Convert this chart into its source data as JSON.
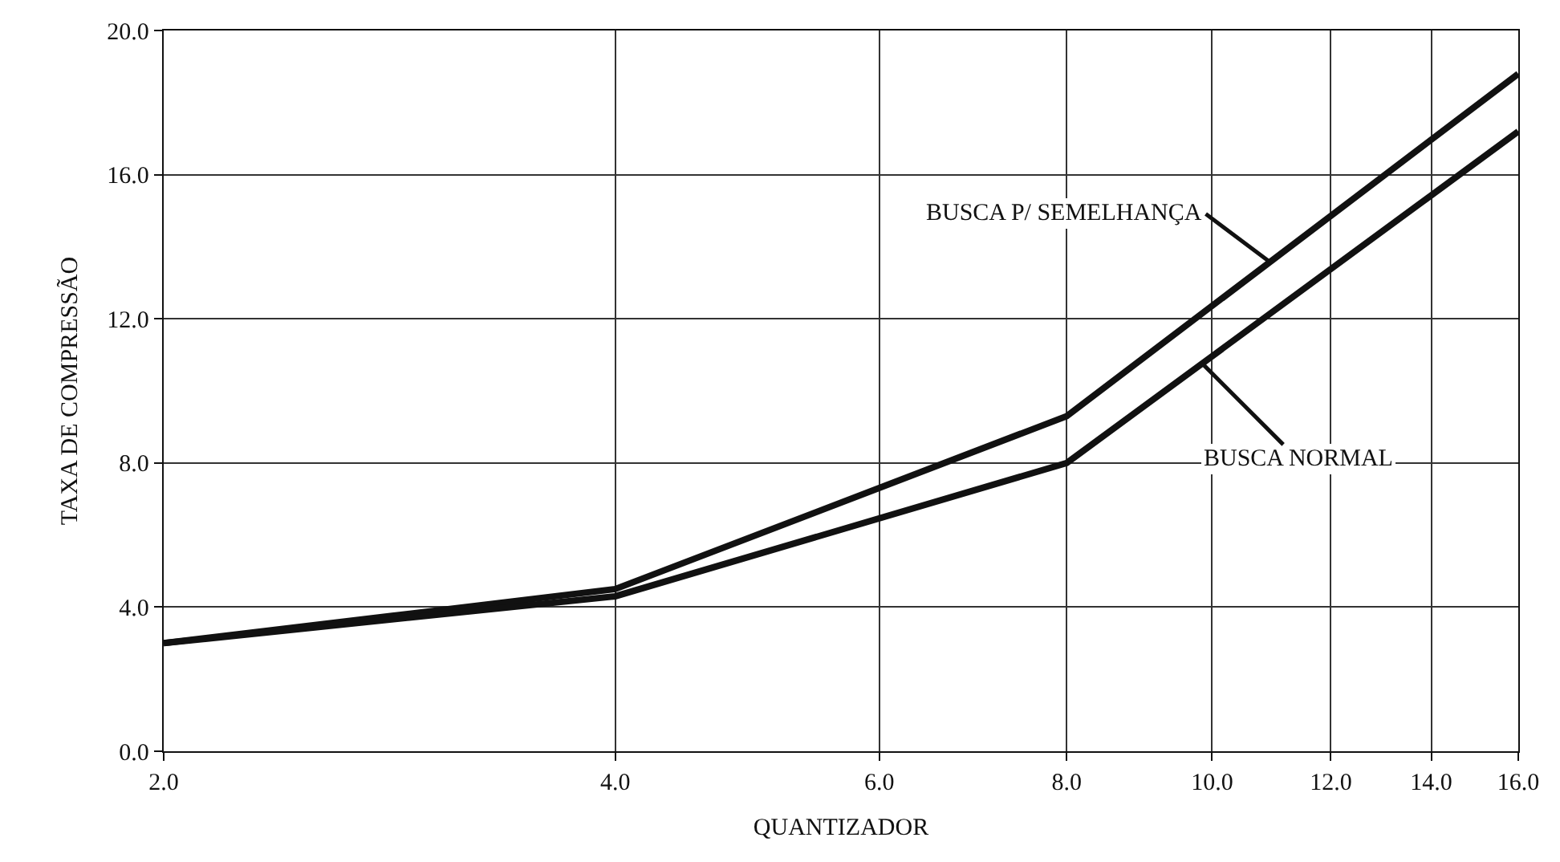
{
  "chart_data": {
    "type": "line",
    "xlabel": "QUANTIZADOR",
    "ylabel": "TAXA DE COMPRESSÃO",
    "log": "x",
    "x": [
      2,
      4,
      8,
      16
    ],
    "series": [
      {
        "name": "BUSCA P/ SEMELHANÇA",
        "color": "#111111",
        "values": [
          3.0,
          4.5,
          9.3,
          18.8
        ]
      },
      {
        "name": "BUSCA NORMAL",
        "color": "#111111",
        "values": [
          3.0,
          4.3,
          8.0,
          17.2
        ]
      }
    ],
    "xlim": [
      2,
      16
    ],
    "xticks": [
      {
        "value": 2,
        "label": "2.0"
      },
      {
        "value": 4,
        "label": "4.0"
      },
      {
        "value": 6,
        "label": "6.0"
      },
      {
        "value": 8,
        "label": "8.0"
      },
      {
        "value": 10,
        "label": "10.0"
      },
      {
        "value": 12,
        "label": "12.0"
      },
      {
        "value": 14,
        "label": "14.0"
      },
      {
        "value": 16,
        "label": "16.0"
      }
    ],
    "ylim": [
      0,
      20
    ],
    "yticks": [
      {
        "value": 0,
        "label": "0.0"
      },
      {
        "value": 4,
        "label": "4.0"
      },
      {
        "value": 8,
        "label": "8.0"
      },
      {
        "value": 12,
        "label": "12.0"
      },
      {
        "value": 16,
        "label": "16.0"
      },
      {
        "value": 20,
        "label": "20.0"
      }
    ],
    "grid": true,
    "legend": false,
    "marker": "none",
    "line_style": "solid"
  }
}
